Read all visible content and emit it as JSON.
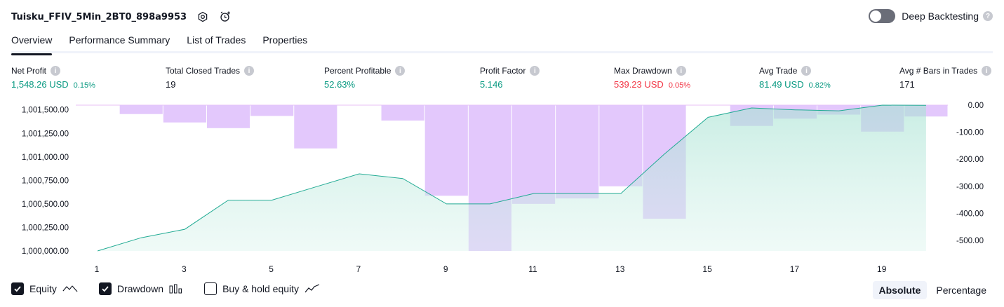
{
  "header": {
    "title": "Tuisku_FFIV_5Min_2BT0_898a9953",
    "deep_backtesting_label": "Deep Backtesting",
    "deep_backtesting_enabled": false
  },
  "tabs": [
    {
      "label": "Overview",
      "active": true
    },
    {
      "label": "Performance Summary",
      "active": false
    },
    {
      "label": "List of Trades",
      "active": false
    },
    {
      "label": "Properties",
      "active": false
    }
  ],
  "metrics": {
    "net_profit": {
      "label": "Net Profit",
      "value": "1,548.26 USD",
      "pct": "0.15%"
    },
    "total_closed_trades": {
      "label": "Total Closed Trades",
      "value": "19"
    },
    "percent_profitable": {
      "label": "Percent Profitable",
      "value": "52.63%"
    },
    "profit_factor": {
      "label": "Profit Factor",
      "value": "5.146"
    },
    "max_drawdown": {
      "label": "Max Drawdown",
      "value": "539.23 USD",
      "pct": "0.05%"
    },
    "avg_trade": {
      "label": "Avg Trade",
      "value": "81.49 USD",
      "pct": "0.82%"
    },
    "avg_bars": {
      "label": "Avg # Bars in Trades",
      "value": "171"
    }
  },
  "colors": {
    "positive": "#089981",
    "negative": "#f23645",
    "equity_line": "#22ab94",
    "drawdown_bar": "#e1c5fc"
  },
  "chart_data": {
    "type": "area",
    "x": [
      1,
      2,
      3,
      4,
      5,
      6,
      7,
      8,
      9,
      10,
      11,
      12,
      13,
      14,
      15,
      16,
      17,
      18,
      19,
      20
    ],
    "x_tick_labels": [
      "1",
      "3",
      "5",
      "7",
      "9",
      "11",
      "13",
      "15",
      "17",
      "19"
    ],
    "series": [
      {
        "name": "Equity",
        "axis": "left",
        "values": [
          1000000,
          1000140,
          1000230,
          1000540,
          1000540,
          1000680,
          1000820,
          1000770,
          1000500,
          1000500,
          1000610,
          1000610,
          1000610,
          1001030,
          1001420,
          1001520,
          1001500,
          1001490,
          1001550,
          1001548
        ]
      },
      {
        "name": "Drawdown",
        "axis": "right",
        "type": "bar",
        "values": [
          0,
          -33,
          -64,
          -85,
          -40,
          -160,
          0,
          -57,
          -335,
          -539,
          -365,
          -345,
          -300,
          -420,
          0,
          -77,
          -50,
          -35,
          -98,
          -42
        ]
      }
    ],
    "left_axis": {
      "ticks": [
        "1,000,000.00",
        "1,000,250.00",
        "1,000,500.00",
        "1,000,750.00",
        "1,001,000.00",
        "1,001,250.00",
        "1,001,500.00"
      ],
      "ylim": [
        1000000,
        1001550
      ]
    },
    "right_axis": {
      "ticks": [
        "0.00",
        "-100.00",
        "-200.00",
        "-300.00",
        "-400.00",
        "-500.00"
      ],
      "ylim": [
        -539,
        0
      ]
    },
    "grid": false
  },
  "legend": {
    "equity": {
      "label": "Equity",
      "checked": true
    },
    "drawdown": {
      "label": "Drawdown",
      "checked": true
    },
    "buy_hold": {
      "label": "Buy & hold equity",
      "checked": false
    }
  },
  "modes": [
    {
      "label": "Absolute",
      "active": true
    },
    {
      "label": "Percentage",
      "active": false
    }
  ]
}
